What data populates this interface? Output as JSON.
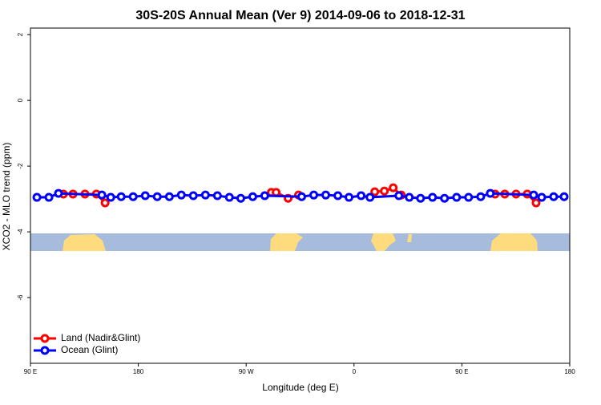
{
  "chart_data": {
    "type": "line",
    "title": "30S-20S Annual Mean (Ver 9)   2014-09-06 to 2018-12-31",
    "x_label": "Longitude (deg E)",
    "y_label": "XCO2 - MLO trend (ppm)",
    "xlim": [
      90,
      540
    ],
    "ylim": [
      -8,
      2.2
    ],
    "xticks": [
      {
        "value": 90,
        "label": "90 E"
      },
      180,
      {
        "value": 270,
        "label": "90 W"
      },
      {
        "value": 360,
        "label": "0"
      },
      {
        "value": 450,
        "label": "90 E"
      },
      {
        "value": 540,
        "label": "180"
      }
    ],
    "yticks": [
      2,
      0,
      -2,
      -4,
      -6
    ],
    "legend": "bottom-left",
    "series": [
      {
        "name": "Land (Nadir&Glint)",
        "color": "#ff0000",
        "x": [
          117.5,
          125.5,
          135.5,
          145,
          152.3,
          null,
          291,
          295,
          305,
          313.7,
          null,
          377.3,
          385.3,
          392.7,
          399.4,
          null,
          477.7,
          485.8,
          495.2,
          504.5,
          511.9
        ],
        "values": [
          -2.85,
          -2.85,
          -2.85,
          -2.85,
          -3.12,
          null,
          -2.8,
          -2.8,
          -2.98,
          -2.88,
          null,
          -2.78,
          -2.76,
          -2.66,
          -2.88,
          null,
          -2.85,
          -2.85,
          -2.85,
          -2.85,
          -3.12
        ]
      },
      {
        "name": "Ocean (Glint)",
        "color": "#0000ff",
        "x": [
          95.4,
          105.4,
          113.4,
          149.6,
          157,
          165.7,
          175.7,
          185.8,
          195.8,
          205.9,
          215.9,
          225.9,
          236,
          246,
          256,
          265.5,
          275.5,
          285.5,
          316.3,
          326.4,
          336.4,
          346.5,
          355.8,
          365.9,
          373.3,
          397.4,
          406.1,
          415.5,
          425.5,
          435.5,
          445.6,
          455.6,
          465.7,
          473.7,
          509.9,
          516.6,
          526.6,
          535.3
        ],
        "values": [
          -2.95,
          -2.95,
          -2.83,
          -2.88,
          -2.95,
          -2.93,
          -2.93,
          -2.9,
          -2.93,
          -2.93,
          -2.88,
          -2.9,
          -2.88,
          -2.9,
          -2.95,
          -2.98,
          -2.93,
          -2.9,
          -2.93,
          -2.88,
          -2.88,
          -2.9,
          -2.95,
          -2.9,
          -2.95,
          -2.9,
          -2.95,
          -2.98,
          -2.95,
          -2.98,
          -2.95,
          -2.95,
          -2.93,
          -2.83,
          -2.88,
          -2.95,
          -2.93,
          -2.93
        ]
      }
    ]
  }
}
